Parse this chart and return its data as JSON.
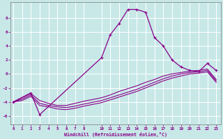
{
  "xlabel": "Windchill (Refroidissement éolien,°C)",
  "bg_color": "#c8e8e8",
  "grid_color": "#ffffff",
  "line_color": "#880088",
  "x_ticks": [
    0,
    1,
    2,
    3,
    4,
    5,
    6,
    7,
    8,
    10,
    11,
    12,
    13,
    14,
    15,
    16,
    17,
    18,
    19,
    20,
    21,
    22,
    23
  ],
  "y_ticks": [
    -6,
    -4,
    -2,
    0,
    2,
    4,
    6,
    8
  ],
  "xlim": [
    -0.3,
    23.5
  ],
  "ylim": [
    -7.2,
    10.2
  ],
  "lines": [
    {
      "x": [
        0,
        1,
        2,
        3,
        4,
        5,
        6,
        7,
        8,
        10,
        11,
        12,
        13,
        14,
        15,
        16,
        17,
        18,
        19,
        20,
        21,
        22,
        23
      ],
      "y": [
        -4,
        -3.4,
        -2.8,
        -3.8,
        -4.2,
        -4.5,
        -4.5,
        -4.2,
        -3.9,
        -3.4,
        -3.0,
        -2.5,
        -2.1,
        -1.7,
        -1.2,
        -0.8,
        -0.3,
        0.0,
        0.2,
        0.4,
        0.5,
        0.7,
        -0.8
      ]
    },
    {
      "x": [
        0,
        1,
        2,
        3,
        4,
        5,
        6,
        7,
        8,
        10,
        11,
        12,
        13,
        14,
        15,
        16,
        17,
        18,
        19,
        20,
        21,
        22,
        23
      ],
      "y": [
        -4,
        -3.6,
        -3.0,
        -4.2,
        -4.5,
        -4.7,
        -4.8,
        -4.6,
        -4.3,
        -3.8,
        -3.4,
        -3.0,
        -2.6,
        -2.2,
        -1.7,
        -1.2,
        -0.7,
        -0.3,
        0.0,
        0.2,
        0.3,
        0.5,
        -1.0
      ]
    },
    {
      "x": [
        0,
        1,
        2,
        3,
        4,
        5,
        6,
        7,
        8,
        10,
        11,
        12,
        13,
        14,
        15,
        16,
        17,
        18,
        19,
        20,
        21,
        22,
        23
      ],
      "y": [
        -4,
        -3.8,
        -3.2,
        -4.5,
        -4.7,
        -5.0,
        -5.1,
        -4.9,
        -4.6,
        -4.1,
        -3.7,
        -3.3,
        -2.9,
        -2.5,
        -2.0,
        -1.5,
        -1.0,
        -0.6,
        -0.3,
        0.0,
        0.1,
        0.3,
        -1.2
      ]
    },
    {
      "x": [
        0,
        2,
        3,
        10,
        11,
        12,
        13,
        14,
        15,
        16,
        17,
        18,
        19,
        20,
        21,
        22,
        23
      ],
      "y": [
        -4,
        -2.7,
        -5.8,
        2.3,
        5.6,
        7.2,
        9.2,
        9.2,
        8.8,
        5.2,
        4.0,
        2.0,
        1.0,
        0.5,
        0.3,
        1.5,
        0.5
      ]
    }
  ]
}
